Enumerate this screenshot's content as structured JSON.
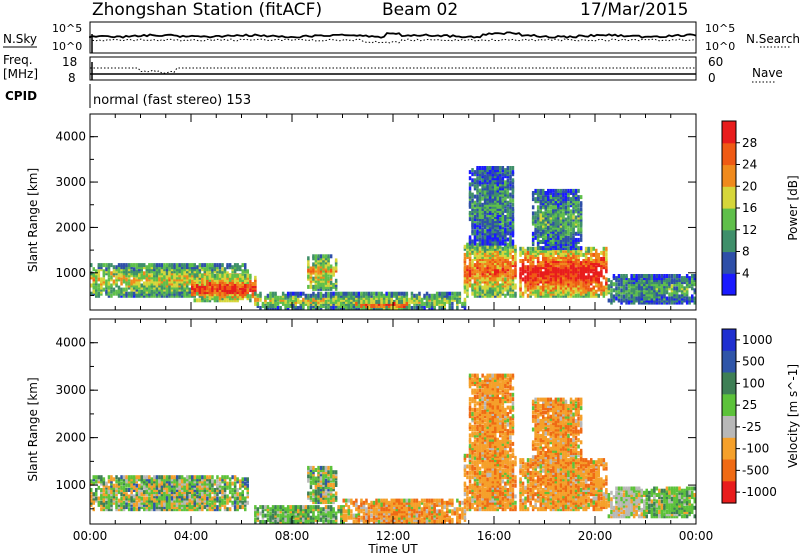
{
  "header": {
    "station": "Zhongshan Station (fitACF)",
    "beam": "Beam 02",
    "date": "17/Mar/2015"
  },
  "status_panels": {
    "nsky_label": "N.Sky",
    "nsky_ticks": [
      "10^5",
      "10^0"
    ],
    "nsearch_label": "N.Search",
    "nsearch_ticks": [
      "10^5",
      "10^0"
    ],
    "freq_label_1": "Freq.",
    "freq_label_2": "[MHz]",
    "freq_ticks": [
      "18",
      "8"
    ],
    "nave_label": "Nave",
    "nave_ticks": [
      "60",
      "0"
    ],
    "cpid_label": "CPID",
    "cpid_text": "normal (fast stereo) 153"
  },
  "chart_data": [
    {
      "type": "heatmap",
      "name": "power",
      "xlabel": "",
      "ylabel": "Slant Range [km]",
      "xlim": [
        0,
        24
      ],
      "ylim": [
        180,
        4500
      ],
      "yticks": [
        "1000",
        "2000",
        "3000",
        "4000"
      ],
      "colorbar_label": "Power [dB]",
      "colorbar_ticks": [
        "4",
        "8",
        "12",
        "16",
        "20",
        "24",
        "28"
      ],
      "colorbar_colors": [
        "#1a1aff",
        "#2e4fa8",
        "#3f8f6a",
        "#5fbf4a",
        "#d6d63a",
        "#f08a1c",
        "#ef5a14",
        "#e81c1c"
      ],
      "regions": [
        {
          "t0": 0.0,
          "t1": 6.2,
          "r0": 450,
          "r1": 1150,
          "peak": 0.55
        },
        {
          "t0": 4.0,
          "t1": 6.5,
          "r0": 350,
          "r1": 900,
          "peak": 0.85
        },
        {
          "t0": 8.6,
          "t1": 9.7,
          "r0": 600,
          "r1": 1350,
          "peak": 0.6
        },
        {
          "t0": 6.5,
          "t1": 14.8,
          "r0": 180,
          "r1": 500,
          "peak": 0.5
        },
        {
          "t0": 10.5,
          "t1": 12.5,
          "r0": 180,
          "r1": 320,
          "peak": 0.85
        },
        {
          "t0": 14.8,
          "t1": 16.9,
          "r0": 450,
          "r1": 1600,
          "peak": 0.75
        },
        {
          "t0": 15.0,
          "t1": 16.8,
          "r0": 1600,
          "r1": 3300,
          "peak": 0.3
        },
        {
          "t0": 17.0,
          "t1": 20.5,
          "r0": 450,
          "r1": 1500,
          "peak": 0.95
        },
        {
          "t0": 17.5,
          "t1": 19.5,
          "r0": 1500,
          "r1": 2800,
          "peak": 0.35
        },
        {
          "t0": 20.5,
          "t1": 24.0,
          "r0": 300,
          "r1": 900,
          "peak": 0.35
        }
      ]
    },
    {
      "type": "heatmap",
      "name": "velocity",
      "xlabel": "Time UT",
      "ylabel": "Slant Range [km]",
      "xlim": [
        0,
        24
      ],
      "ylim": [
        180,
        4500
      ],
      "xticks": [
        "00:00",
        "04:00",
        "08:00",
        "12:00",
        "16:00",
        "20:00",
        "00:00"
      ],
      "yticks": [
        "1000",
        "2000",
        "3000",
        "4000"
      ],
      "colorbar_label": "Velocity [m s^-1]",
      "colorbar_ticks": [
        "1000",
        "500",
        "100",
        "25",
        "-25",
        "-100",
        "-500",
        "-1000"
      ],
      "colorbar_colors": [
        "#1f2fcf",
        "#2f55a8",
        "#3e7f55",
        "#5cc23a",
        "#b8b8b8",
        "#f5a02a",
        "#ef6a14",
        "#e81c1c"
      ],
      "regions": [
        {
          "t0": 0.0,
          "t1": 6.2,
          "r0": 450,
          "r1": 1150,
          "vel": "mixed"
        },
        {
          "t0": 8.6,
          "t1": 9.7,
          "r0": 600,
          "r1": 1350,
          "vel": "mixed"
        },
        {
          "t0": 6.5,
          "t1": 10.0,
          "r0": 180,
          "r1": 500,
          "vel": "green"
        },
        {
          "t0": 10.0,
          "t1": 14.8,
          "r0": 180,
          "r1": 650,
          "vel": "orange"
        },
        {
          "t0": 14.8,
          "t1": 16.9,
          "r0": 450,
          "r1": 1600,
          "vel": "orange"
        },
        {
          "t0": 15.0,
          "t1": 16.8,
          "r0": 1600,
          "r1": 3300,
          "vel": "orange"
        },
        {
          "t0": 17.0,
          "t1": 20.5,
          "r0": 450,
          "r1": 1500,
          "vel": "orange"
        },
        {
          "t0": 17.5,
          "t1": 19.5,
          "r0": 1500,
          "r1": 2800,
          "vel": "orange"
        },
        {
          "t0": 20.5,
          "t1": 22.0,
          "r0": 300,
          "r1": 900,
          "vel": "grey"
        },
        {
          "t0": 22.0,
          "t1": 24.0,
          "r0": 300,
          "r1": 900,
          "vel": "green"
        }
      ]
    }
  ]
}
